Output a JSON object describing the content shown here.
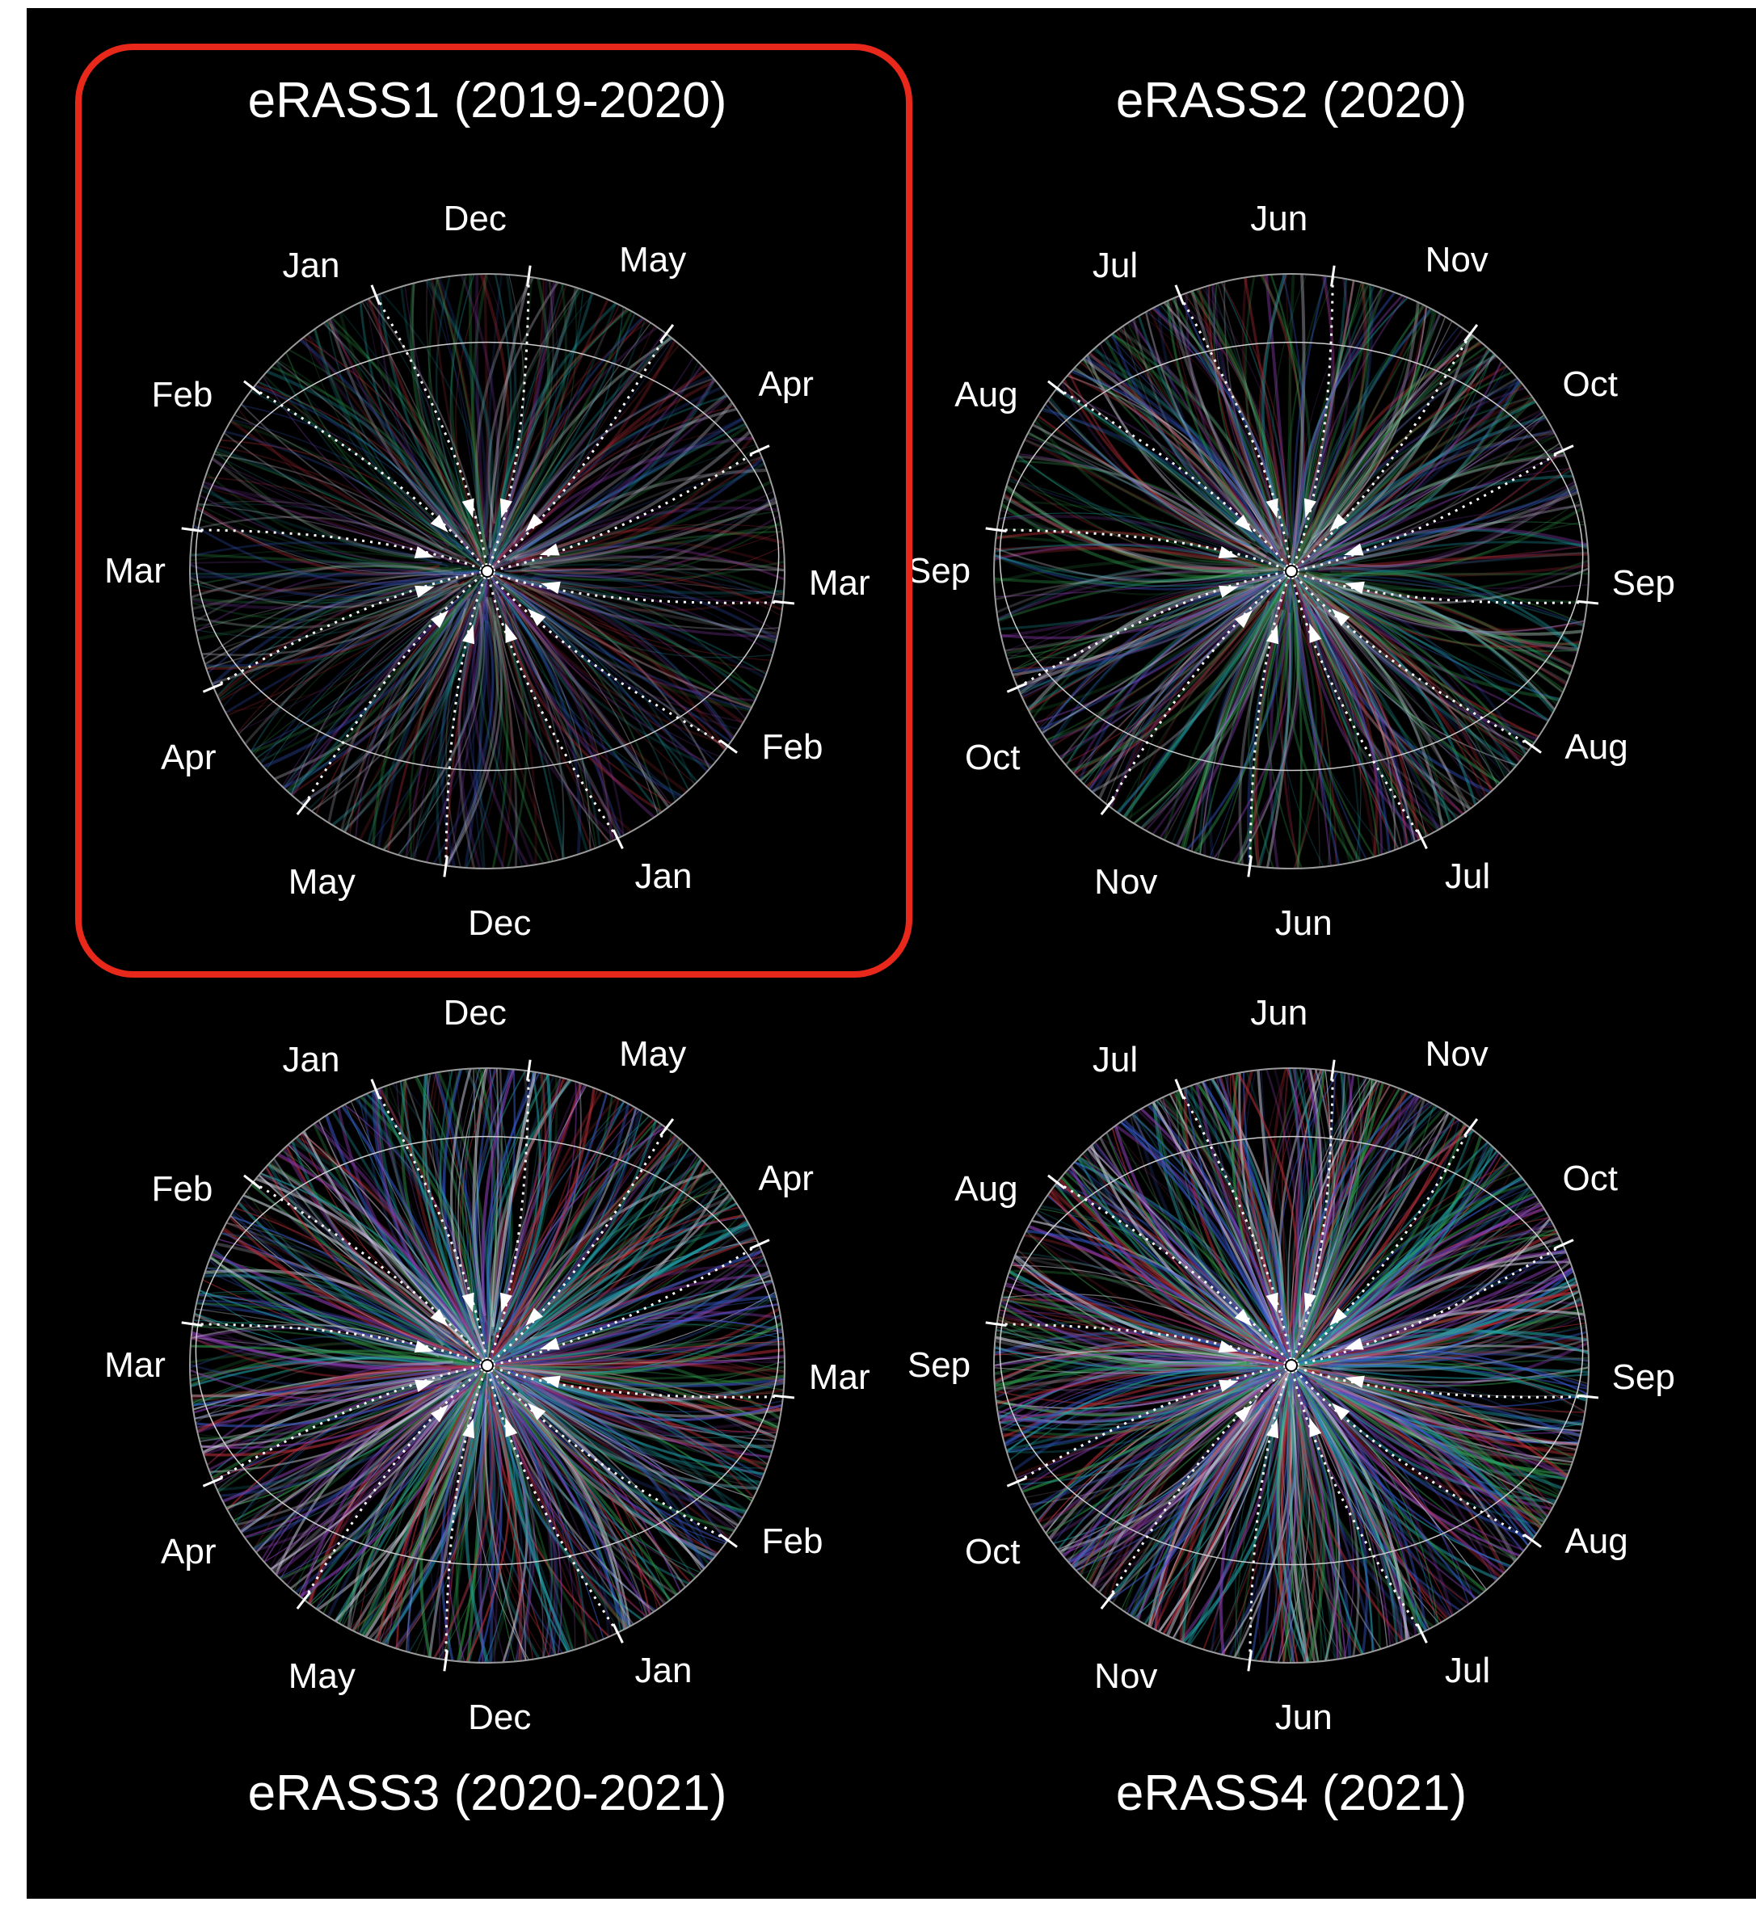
{
  "colors": {
    "background": "#000000",
    "highlight": "#e8281a",
    "tracks": [
      "#c0303a",
      "#2f9a4a",
      "#3558c8",
      "#8a3cb0",
      "#20a0a8",
      "#d0d0e0"
    ]
  },
  "icons": [
    "arrowhead-icon",
    "center-dot-icon"
  ],
  "highlighted_panel": "eRASS1 (2019-2020)",
  "panels": [
    {
      "title": "eRASS1 (2019-2020)",
      "brightness": 0.35,
      "months": [
        "Dec",
        "May",
        "Apr",
        "Mar",
        "Feb",
        "Jan",
        "Dec",
        "May",
        "Apr",
        "Mar",
        "Feb",
        "Jan"
      ]
    },
    {
      "title": "eRASS2 (2020)",
      "brightness": 0.55,
      "months": [
        "Jun",
        "Nov",
        "Oct",
        "Sep",
        "Aug",
        "Jul",
        "Jun",
        "Nov",
        "Oct",
        "Sep",
        "Aug",
        "Jul"
      ]
    },
    {
      "title": "eRASS3 (2020-2021)",
      "brightness": 0.85,
      "months": [
        "Dec",
        "May",
        "Apr",
        "Mar",
        "Feb",
        "Jan",
        "Dec",
        "May",
        "Apr",
        "Mar",
        "Feb",
        "Jan"
      ]
    },
    {
      "title": "eRASS4 (2021)",
      "brightness": 0.95,
      "months": [
        "Jun",
        "Nov",
        "Oct",
        "Sep",
        "Aug",
        "Jul",
        "Jun",
        "Nov",
        "Oct",
        "Sep",
        "Aug",
        "Jul"
      ]
    }
  ]
}
